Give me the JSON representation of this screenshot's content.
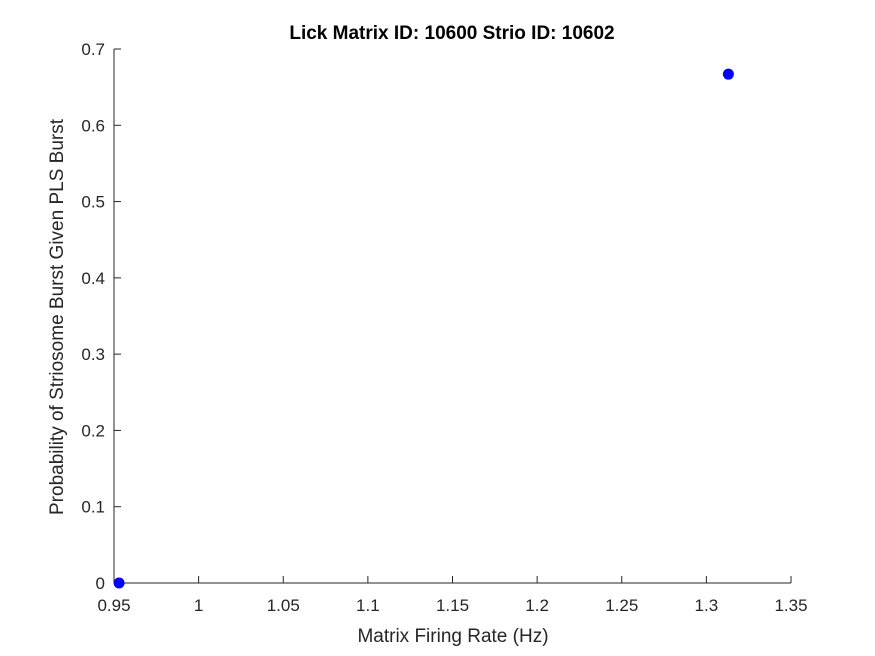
{
  "chart_data": {
    "type": "scatter",
    "title": "Lick Matrix ID: 10600 Strio ID: 10602",
    "xlabel": "Matrix Firing Rate (Hz)",
    "ylabel": "Probability of Striosome Burst Given PLS Burst",
    "xlim": [
      0.95,
      1.35
    ],
    "ylim": [
      0,
      0.7
    ],
    "xticks": [
      0.95,
      1,
      1.05,
      1.1,
      1.15,
      1.2,
      1.25,
      1.3,
      1.35
    ],
    "xtick_labels": [
      "0.95",
      "1",
      "1.05",
      "1.1",
      "1.15",
      "1.2",
      "1.25",
      "1.3",
      "1.35"
    ],
    "yticks": [
      0,
      0.1,
      0.2,
      0.3,
      0.4,
      0.5,
      0.6,
      0.7
    ],
    "ytick_labels": [
      "0",
      "0.1",
      "0.2",
      "0.3",
      "0.4",
      "0.5",
      "0.6",
      "0.7"
    ],
    "grid": false,
    "legend": "none",
    "series": [
      {
        "color": "#0000ff",
        "points": [
          {
            "x": 0.953,
            "y": 0
          },
          {
            "x": 1.313,
            "y": 0.667
          }
        ]
      }
    ]
  },
  "colors": {
    "axis": "#262626",
    "marker": "#0000ff",
    "background": "#ffffff"
  }
}
